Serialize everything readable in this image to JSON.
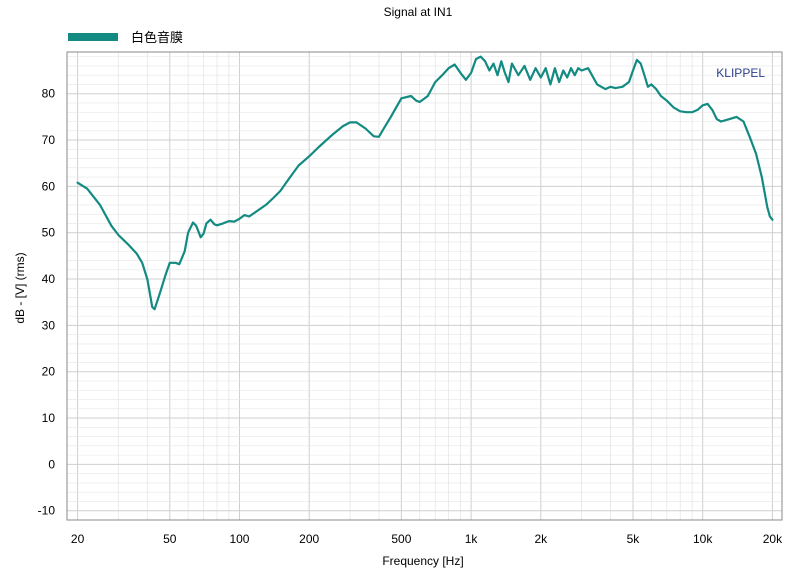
{
  "chart_data": {
    "type": "line",
    "title": "Signal at IN1",
    "xlabel": "Frequency [Hz]",
    "ylabel": "dB - [V]  (rms)",
    "watermark": "KLIPPEL",
    "x_scale": "log",
    "xlim": [
      18,
      22000
    ],
    "ylim": [
      -12,
      89
    ],
    "grid": true,
    "legend_position": "top-left",
    "colors": {
      "series": "#138a82",
      "watermark": "#2b3f8c",
      "grid_major": "#cfcfcf",
      "grid_minor": "#e6e6e6",
      "frame": "#8a8a8a"
    },
    "x_ticks": [
      {
        "value": 20,
        "label": "20"
      },
      {
        "value": 50,
        "label": "50"
      },
      {
        "value": 100,
        "label": "100"
      },
      {
        "value": 200,
        "label": "200"
      },
      {
        "value": 500,
        "label": "500"
      },
      {
        "value": 1000,
        "label": "1k"
      },
      {
        "value": 2000,
        "label": "2k"
      },
      {
        "value": 5000,
        "label": "5k"
      },
      {
        "value": 10000,
        "label": "10k"
      },
      {
        "value": 20000,
        "label": "20k"
      }
    ],
    "y_ticks": [
      -10,
      0,
      10,
      20,
      30,
      40,
      50,
      60,
      70,
      80
    ],
    "series": [
      {
        "name": "白色音膜",
        "x": [
          20,
          22,
          25,
          28,
          30,
          33,
          36,
          38,
          40,
          41,
          42,
          43,
          45,
          48,
          50,
          53,
          55,
          58,
          60,
          63,
          65,
          68,
          70,
          72,
          75,
          78,
          80,
          85,
          90,
          95,
          100,
          105,
          110,
          120,
          130,
          140,
          150,
          160,
          180,
          200,
          220,
          250,
          280,
          300,
          320,
          350,
          380,
          400,
          420,
          450,
          500,
          550,
          580,
          600,
          650,
          700,
          750,
          800,
          850,
          900,
          950,
          1000,
          1050,
          1100,
          1150,
          1200,
          1250,
          1300,
          1350,
          1400,
          1450,
          1500,
          1600,
          1700,
          1800,
          1900,
          2000,
          2100,
          2200,
          2300,
          2400,
          2500,
          2600,
          2700,
          2800,
          2900,
          3000,
          3200,
          3500,
          3800,
          4000,
          4200,
          4500,
          4800,
          5000,
          5200,
          5400,
          5600,
          5800,
          6000,
          6300,
          6600,
          7000,
          7500,
          8000,
          8500,
          9000,
          9500,
          10000,
          10500,
          11000,
          11500,
          12000,
          13000,
          14000,
          15000,
          16000,
          17000,
          18000,
          19000,
          19500,
          20000
        ],
        "values": [
          60.8,
          59.5,
          56.0,
          51.5,
          49.5,
          47.5,
          45.5,
          43.5,
          40.0,
          37.0,
          34.0,
          33.5,
          36.5,
          41.0,
          43.5,
          43.5,
          43.2,
          46.0,
          50.0,
          52.2,
          51.5,
          49.0,
          49.8,
          52.0,
          52.8,
          51.8,
          51.6,
          52.0,
          52.5,
          52.4,
          53.0,
          53.8,
          53.5,
          54.8,
          56.0,
          57.5,
          59.0,
          61.0,
          64.5,
          66.5,
          68.5,
          71.0,
          73.0,
          73.8,
          73.8,
          72.5,
          70.8,
          70.7,
          72.5,
          75.0,
          79.0,
          79.5,
          78.5,
          78.2,
          79.5,
          82.5,
          84.0,
          85.5,
          86.3,
          84.5,
          83.0,
          84.5,
          87.5,
          88.0,
          87.0,
          85.0,
          86.5,
          84.0,
          87.0,
          84.5,
          82.5,
          86.5,
          84.0,
          86.0,
          83.0,
          85.5,
          83.5,
          85.5,
          82.0,
          85.5,
          82.5,
          85.0,
          83.5,
          85.5,
          84.0,
          85.5,
          85.0,
          85.5,
          82.0,
          81.0,
          81.5,
          81.2,
          81.5,
          82.5,
          85.0,
          87.3,
          86.5,
          84.0,
          81.5,
          82.0,
          81.0,
          79.5,
          78.5,
          77.0,
          76.2,
          76.0,
          76.0,
          76.5,
          77.5,
          77.8,
          76.5,
          74.5,
          74.0,
          74.5,
          75.0,
          74.0,
          70.5,
          67.0,
          62.0,
          55.5,
          53.5,
          52.8
        ]
      }
    ]
  }
}
